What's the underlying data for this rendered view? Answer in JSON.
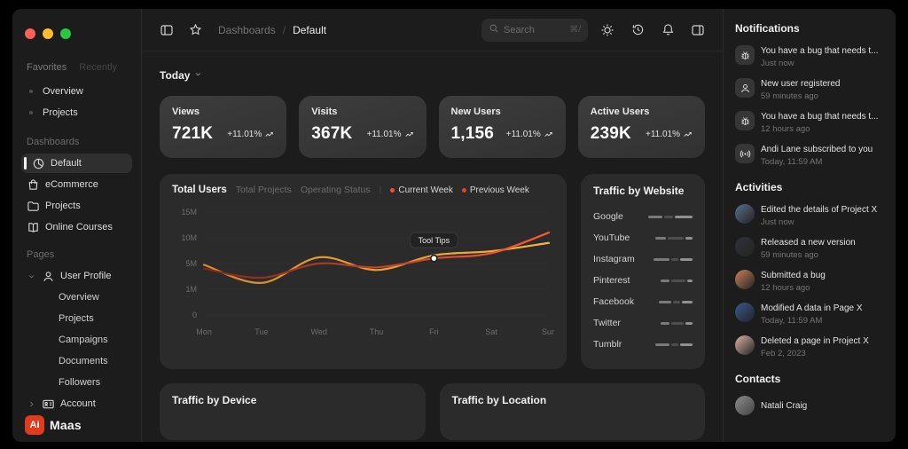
{
  "window": {
    "traffic_lights": [
      "#ff5f57",
      "#febc2e",
      "#28c840"
    ]
  },
  "sidebar": {
    "tabs": [
      {
        "label": "Favorites",
        "active": true
      },
      {
        "label": "Recently",
        "active": false
      }
    ],
    "favorites": [
      "Overview",
      "Projects"
    ],
    "sections": [
      {
        "title": "Dashboards",
        "items": [
          {
            "label": "Default",
            "icon": "pie-chart-icon",
            "active": true
          },
          {
            "label": "eCommerce",
            "icon": "shopping-bag-icon"
          },
          {
            "label": "Projects",
            "icon": "folder-icon"
          },
          {
            "label": "Online Courses",
            "icon": "book-icon"
          }
        ]
      },
      {
        "title": "Pages",
        "items": [
          {
            "label": "User Profile",
            "icon": "user-icon",
            "chevron": "down",
            "children": [
              "Overview",
              "Projects",
              "Campaigns",
              "Documents",
              "Followers"
            ]
          },
          {
            "label": "Account",
            "icon": "id-card-icon",
            "chevron": "right"
          }
        ]
      }
    ],
    "logo": {
      "mark": "Ai",
      "name": "Maas"
    }
  },
  "header": {
    "breadcrumb": [
      {
        "label": "Dashboards"
      },
      {
        "label": "Default"
      }
    ],
    "breadcrumb_separator": "/",
    "search": {
      "placeholder": "Search",
      "shortcut": "⌘/"
    }
  },
  "main": {
    "period_selector": {
      "label": "Today"
    },
    "stats": [
      {
        "label": "Views",
        "value": "721K",
        "delta": "+11.01%"
      },
      {
        "label": "Visits",
        "value": "367K",
        "delta": "+11.01%"
      },
      {
        "label": "New Users",
        "value": "1,156",
        "delta": "+11.01%"
      },
      {
        "label": "Active Users",
        "value": "239K",
        "delta": "+11.01%"
      }
    ],
    "chart_data": {
      "type": "line",
      "tabs": [
        {
          "label": "Total Users",
          "active": true
        },
        {
          "label": "Total Projects",
          "active": false
        },
        {
          "label": "Operating Status",
          "active": false
        }
      ],
      "legend": [
        {
          "label": "Current Week",
          "color": "#ff4a2e"
        },
        {
          "label": "Previous Week",
          "color": "#e0452c"
        }
      ],
      "x": [
        "Mon",
        "Tue",
        "Wed",
        "Thu",
        "Fri",
        "Sat",
        "Sun"
      ],
      "y_ticks": [
        "15M",
        "10M",
        "5M",
        "1M",
        "0"
      ],
      "ylim_millions": [
        0,
        15
      ],
      "series": [
        {
          "name": "Current Week",
          "values_millions": [
            4.2,
            2.8,
            5.0,
            4.4,
            6.0,
            7.0,
            11.0
          ],
          "color_from": "#7a2a1c",
          "color_to": "#ff5a36"
        },
        {
          "name": "Previous Week",
          "values_millions": [
            4.8,
            2.0,
            6.2,
            4.0,
            6.6,
            7.4,
            9.0
          ],
          "color_from": "#d98a2b",
          "color_to": "#f2b33d"
        }
      ],
      "tooltip": {
        "label": "Tool Tips",
        "x_index": 4,
        "value_millions": 6.0
      }
    },
    "traffic_website": {
      "title": "Traffic by Website",
      "sites": [
        {
          "name": "Google",
          "segments": [
            16,
            10,
            20
          ]
        },
        {
          "name": "YouTube",
          "segments": [
            12,
            18,
            8
          ]
        },
        {
          "name": "Instagram",
          "segments": [
            18,
            8,
            14
          ]
        },
        {
          "name": "Pinterest",
          "segments": [
            10,
            16,
            6
          ]
        },
        {
          "name": "Facebook",
          "segments": [
            14,
            8,
            12
          ]
        },
        {
          "name": "Twitter",
          "segments": [
            10,
            14,
            8
          ]
        },
        {
          "name": "Tumblr",
          "segments": [
            16,
            8,
            14
          ]
        }
      ]
    },
    "bottom_panels": [
      {
        "title": "Traffic by Device"
      },
      {
        "title": "Traffic by Location"
      }
    ]
  },
  "right_panel": {
    "notifications": {
      "title": "Notifications",
      "items": [
        {
          "icon": "bug-icon",
          "text": "You have a bug that needs t...",
          "time": "Just now"
        },
        {
          "icon": "user-icon",
          "text": "New user registered",
          "time": "59 minutes ago"
        },
        {
          "icon": "bug-icon",
          "text": "You have a bug that needs t...",
          "time": "12 hours ago"
        },
        {
          "icon": "broadcast-icon",
          "text": "Andi Lane subscribed to you",
          "time": "Today, 11:59 AM"
        }
      ]
    },
    "activities": {
      "title": "Activities",
      "items": [
        {
          "text": "Edited the details of Project X",
          "time": "Just now",
          "avatar": "#5b6e8c"
        },
        {
          "text": "Released a new version",
          "time": "59 minutes ago",
          "avatar": "#32343a"
        },
        {
          "text": "Submitted a bug",
          "time": "12 hours ago",
          "avatar": "#c9825a"
        },
        {
          "text": "Modified A data in Page X",
          "time": "Today, 11:59 AM",
          "avatar": "#39598c"
        },
        {
          "text": "Deleted a page in Project X",
          "time": "Feb 2, 2023",
          "avatar": "#d9b3a6"
        }
      ]
    },
    "contacts": {
      "title": "Contacts",
      "items": [
        {
          "name": "Natali Craig",
          "avatar": "#8c8c8c"
        }
      ]
    }
  }
}
